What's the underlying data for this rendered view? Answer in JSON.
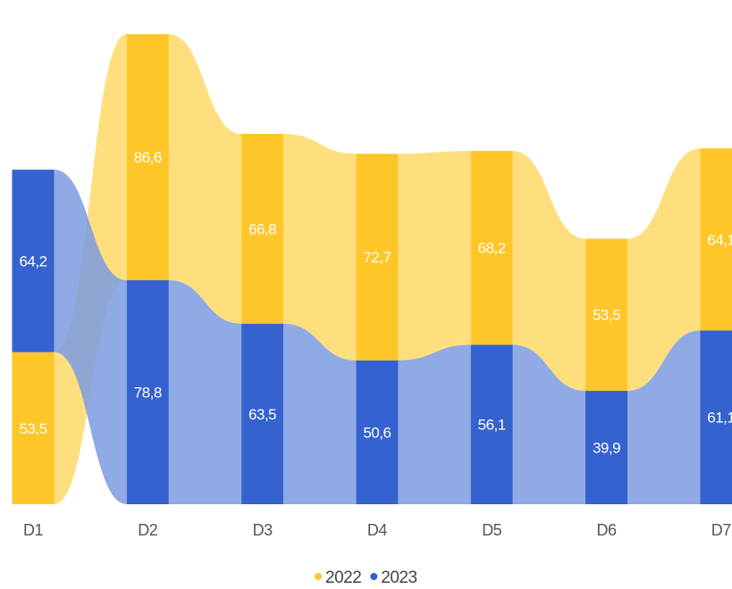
{
  "chart_data": {
    "type": "bar",
    "subtype": "ribbon",
    "categories": [
      "D1",
      "D2",
      "D3",
      "D4",
      "D5",
      "D6",
      "D7"
    ],
    "series": [
      {
        "name": "2022",
        "color": "#FFC629",
        "ribbon_color": "#FFD966",
        "values": [
          53.5,
          86.6,
          66.8,
          72.7,
          68.2,
          53.5,
          64.1
        ],
        "labels": [
          "53,5",
          "86,6",
          "66,8",
          "72,7",
          "68,2",
          "53,5",
          "64,1"
        ]
      },
      {
        "name": "2023",
        "color": "#3562CE",
        "ribbon_color": "#7B9BE0",
        "values": [
          64.2,
          78.8,
          63.5,
          50.6,
          56.1,
          39.9,
          61.1
        ],
        "labels": [
          "64,2",
          "78,8",
          "63,5",
          "50,6",
          "56,1",
          "39,9",
          "61,1"
        ]
      }
    ],
    "stack_order": "larger value on top",
    "legend": {
      "position": "bottom-center",
      "items": [
        "2022",
        "2023"
      ]
    },
    "grid": false,
    "ylim": [
      0,
      170
    ]
  }
}
